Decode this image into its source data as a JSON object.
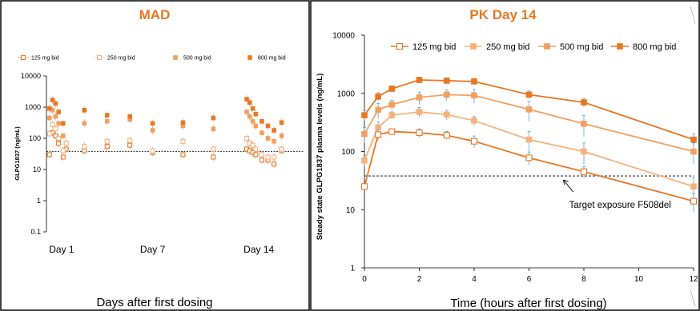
{
  "colors": {
    "c125": "#e87722",
    "c250": "#f5b27d",
    "c500": "#f2a060",
    "c800": "#e87722",
    "title": "#e87722",
    "errorbar": "#5ba3d0"
  },
  "chart_data": [
    {
      "type": "scatter",
      "title": "MAD",
      "xlabel": "Days after first dosing",
      "ylabel": "GLPG1837 (ng/mL)",
      "y_scale": "log",
      "ylim": [
        0.1,
        10000
      ],
      "y_ticks": [
        "0.1",
        "1",
        "10",
        "100",
        "1000",
        "10000"
      ],
      "x_range": [
        0,
        17
      ],
      "x_tick_labels": [
        {
          "label": "Day 1",
          "x": 1
        },
        {
          "label": "Day 7",
          "x": 7
        },
        {
          "label": "Day 14",
          "x": 14
        }
      ],
      "reference_line": 38,
      "legend_position": "top",
      "series": [
        {
          "name": "125 mg bid",
          "marker": "open-square",
          "points": [
            [
              0.2,
              30
            ],
            [
              0.4,
              150
            ],
            [
              0.6,
              120
            ],
            [
              0.8,
              70
            ],
            [
              1.1,
              25
            ],
            [
              1.3,
              45
            ],
            [
              2.5,
              40
            ],
            [
              4,
              55
            ],
            [
              5.5,
              60
            ],
            [
              7,
              35
            ],
            [
              9,
              30
            ],
            [
              11,
              25
            ],
            [
              13.2,
              45
            ],
            [
              13.4,
              40
            ],
            [
              13.6,
              35
            ],
            [
              13.8,
              30
            ],
            [
              14.2,
              20
            ],
            [
              14.6,
              20
            ],
            [
              15,
              15
            ],
            [
              15.5,
              40
            ]
          ]
        },
        {
          "name": "250 mg bid",
          "marker": "open-square",
          "points": [
            [
              0.2,
              140
            ],
            [
              0.4,
              280
            ],
            [
              0.6,
              200
            ],
            [
              0.8,
              100
            ],
            [
              1.1,
              40
            ],
            [
              1.3,
              70
            ],
            [
              2.5,
              55
            ],
            [
              4,
              80
            ],
            [
              5.5,
              85
            ],
            [
              7,
              40
            ],
            [
              9,
              80
            ],
            [
              11,
              45
            ],
            [
              13.2,
              100
            ],
            [
              13.4,
              70
            ],
            [
              13.6,
              60
            ],
            [
              13.8,
              45
            ],
            [
              14.2,
              30
            ],
            [
              14.6,
              25
            ],
            [
              15,
              25
            ],
            [
              15.5,
              45
            ]
          ]
        },
        {
          "name": "500 mg bid",
          "marker": "filled-square",
          "points": [
            [
              0.2,
              450
            ],
            [
              0.4,
              800
            ],
            [
              0.6,
              500
            ],
            [
              0.8,
              300
            ],
            [
              1.1,
              120
            ],
            [
              2.5,
              300
            ],
            [
              4,
              350
            ],
            [
              5.5,
              400
            ],
            [
              7,
              180
            ],
            [
              9,
              250
            ],
            [
              11,
              200
            ],
            [
              13.2,
              700
            ],
            [
              13.4,
              500
            ],
            [
              13.6,
              350
            ],
            [
              13.8,
              250
            ],
            [
              14.2,
              150
            ],
            [
              14.6,
              100
            ],
            [
              15,
              80
            ],
            [
              15.5,
              120
            ]
          ]
        },
        {
          "name": "800 mg bid",
          "marker": "filled-square",
          "points": [
            [
              0.2,
              900
            ],
            [
              0.4,
              1700
            ],
            [
              0.6,
              1300
            ],
            [
              0.8,
              700
            ],
            [
              1.1,
              300
            ],
            [
              2.5,
              800
            ],
            [
              4,
              550
            ],
            [
              5.5,
              500
            ],
            [
              7,
              300
            ],
            [
              9,
              320
            ],
            [
              11,
              450
            ],
            [
              13.2,
              1800
            ],
            [
              13.4,
              1400
            ],
            [
              13.6,
              900
            ],
            [
              13.8,
              600
            ],
            [
              14.2,
              350
            ],
            [
              14.6,
              250
            ],
            [
              15,
              180
            ],
            [
              15.5,
              320
            ]
          ]
        }
      ]
    },
    {
      "type": "line",
      "title": "PK Day 14",
      "xlabel": "Time (hours after first dosing)",
      "ylabel": "Steady state GLPG1837  plasma levels (ng/mL)",
      "y_scale": "log",
      "ylim": [
        1,
        10000
      ],
      "y_ticks": [
        "1",
        "10",
        "100",
        "1000",
        "10000"
      ],
      "xlim": [
        0,
        12
      ],
      "x_ticks": [
        "0",
        "2",
        "4",
        "6",
        "8",
        "10",
        "12"
      ],
      "reference_line": 38,
      "annotation": {
        "text": "Target exposure F508del",
        "x": 7.2,
        "y": 38
      },
      "legend_position": "top",
      "x": [
        0,
        0.25,
        0.5,
        1,
        2,
        3,
        4,
        6,
        8,
        12
      ],
      "series": [
        {
          "name": "125 mg bid",
          "marker": "open-square",
          "x": [
            0,
            0.5,
            1,
            2,
            3,
            4,
            6,
            8,
            12
          ],
          "values": [
            25,
            195,
            220,
            210,
            190,
            150,
            78,
            45,
            14
          ],
          "errors": [
            3,
            40,
            25,
            35,
            30,
            35,
            20,
            10,
            5
          ]
        },
        {
          "name": "250 mg bid",
          "marker": "filled-square",
          "x": [
            0,
            0.5,
            1,
            2,
            3,
            4,
            6,
            8,
            12
          ],
          "values": [
            70,
            260,
            420,
            480,
            430,
            340,
            160,
            100,
            25
          ],
          "errors": [
            15,
            60,
            60,
            90,
            80,
            60,
            60,
            40,
            10
          ]
        },
        {
          "name": "500 mg bid",
          "marker": "filled-square",
          "x": [
            0,
            0.5,
            1,
            2,
            3,
            4,
            6,
            8,
            12
          ],
          "values": [
            200,
            520,
            640,
            850,
            950,
            920,
            530,
            300,
            100
          ],
          "errors": [
            60,
            150,
            120,
            200,
            200,
            250,
            200,
            120,
            40
          ]
        },
        {
          "name": "800 mg bid",
          "marker": "filled-square",
          "x": [
            0,
            0.5,
            1,
            2,
            3,
            4,
            6,
            8,
            12
          ],
          "values": [
            420,
            880,
            1200,
            1700,
            1650,
            1600,
            950,
            700,
            160
          ],
          "errors": [
            80,
            150,
            150,
            200,
            200,
            200,
            150,
            120,
            40
          ]
        }
      ]
    }
  ]
}
